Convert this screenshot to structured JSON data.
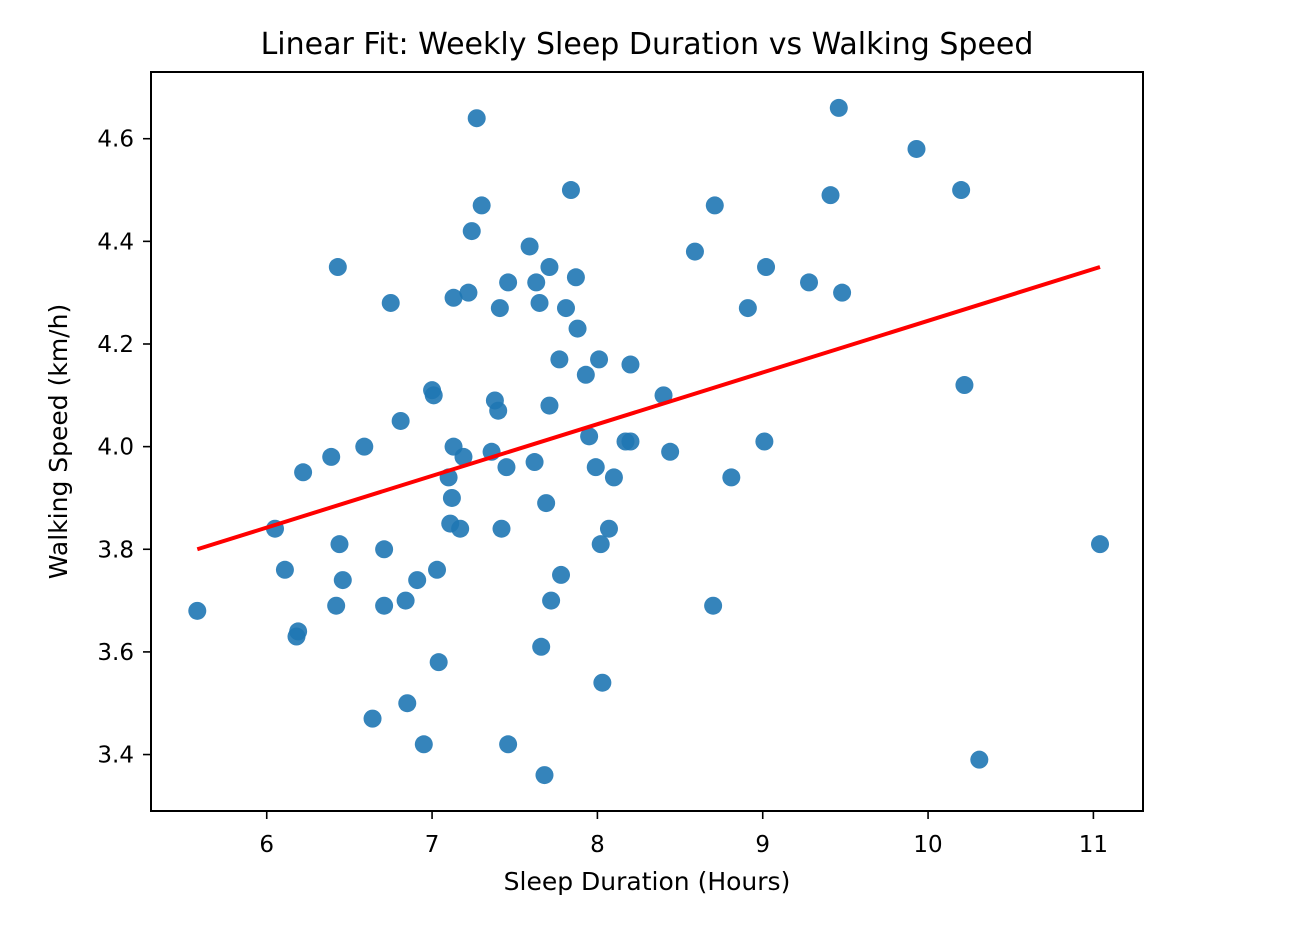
{
  "chart_data": {
    "type": "scatter",
    "title": "Linear Fit: Weekly Sleep Duration vs Walking Speed",
    "xlabel": "Sleep Duration (Hours)",
    "ylabel": "Walking Speed (km/h)",
    "xlim": [
      5.3,
      11.3
    ],
    "ylim": [
      3.29,
      4.73
    ],
    "xticks": [
      6,
      7,
      8,
      9,
      10,
      11
    ],
    "yticks": [
      3.4,
      3.6,
      3.8,
      4.0,
      4.2,
      4.4,
      4.6
    ],
    "grid": false,
    "colors": {
      "points": "#1f77b4",
      "fit_line": "#ff0000",
      "axes": "#000000"
    },
    "series": [
      {
        "type": "scatter",
        "x": [
          5.58,
          6.05,
          6.11,
          6.18,
          6.19,
          6.22,
          6.39,
          6.42,
          6.43,
          6.44,
          6.46,
          6.59,
          6.64,
          6.71,
          6.71,
          6.75,
          6.81,
          6.84,
          6.85,
          6.91,
          6.95,
          7.0,
          7.01,
          7.03,
          7.04,
          7.1,
          7.11,
          7.12,
          7.13,
          7.13,
          7.17,
          7.19,
          7.22,
          7.24,
          7.27,
          7.3,
          7.36,
          7.38,
          7.4,
          7.41,
          7.42,
          7.45,
          7.46,
          7.46,
          7.59,
          7.62,
          7.63,
          7.65,
          7.66,
          7.68,
          7.69,
          7.71,
          7.71,
          7.72,
          7.77,
          7.78,
          7.81,
          7.84,
          7.87,
          7.88,
          7.93,
          7.95,
          7.99,
          8.01,
          8.02,
          8.03,
          8.07,
          8.1,
          8.17,
          8.2,
          8.2,
          8.4,
          8.44,
          8.59,
          8.7,
          8.71,
          8.81,
          8.91,
          9.01,
          9.02,
          9.28,
          9.41,
          9.46,
          9.48,
          9.93,
          10.2,
          10.22,
          10.31,
          11.04
        ],
        "y": [
          3.68,
          3.84,
          3.76,
          3.63,
          3.64,
          3.95,
          3.98,
          3.69,
          4.35,
          3.81,
          3.74,
          4.0,
          3.47,
          3.8,
          3.69,
          4.28,
          4.05,
          3.7,
          3.5,
          3.74,
          3.42,
          4.11,
          4.1,
          3.76,
          3.58,
          3.94,
          3.85,
          3.9,
          4.0,
          4.29,
          3.84,
          3.98,
          4.3,
          4.42,
          4.64,
          4.47,
          3.99,
          4.09,
          4.07,
          4.27,
          3.84,
          3.96,
          3.42,
          4.32,
          4.39,
          3.97,
          4.32,
          4.28,
          3.61,
          3.36,
          3.89,
          4.08,
          4.35,
          3.7,
          4.17,
          3.75,
          4.27,
          4.5,
          4.33,
          4.23,
          4.14,
          4.02,
          3.96,
          4.17,
          3.81,
          3.54,
          3.84,
          3.94,
          4.01,
          4.16,
          4.01,
          4.1,
          3.99,
          4.38,
          3.69,
          4.47,
          3.94,
          4.27,
          4.01,
          4.35,
          4.32,
          4.49,
          4.66,
          4.3,
          4.58,
          4.5,
          4.12,
          3.39,
          3.81
        ]
      },
      {
        "type": "line",
        "x": [
          5.58,
          11.04
        ],
        "y": [
          3.8,
          4.35
        ]
      }
    ]
  }
}
